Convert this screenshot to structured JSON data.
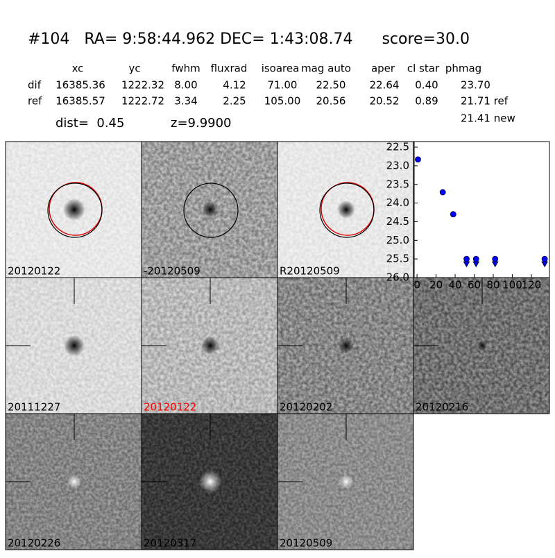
{
  "header": {
    "title": "#104   RA= 9:58:44.962 DEC= 1:43:08.74      score=30.0"
  },
  "table": {
    "columns": [
      "xc",
      "yc",
      "fwhm",
      "fluxrad",
      "isoarea",
      "mag auto",
      "aper",
      "cl star",
      "phmag"
    ],
    "rows": [
      [
        "dif",
        "16385.36",
        "1222.32",
        "8.00",
        "4.12",
        "71.00",
        "22.50",
        "22.64",
        "0.40",
        "23.70"
      ],
      [
        "ref",
        "16385.57",
        "1222.72",
        "3.34",
        "2.25",
        "105.00",
        "20.56",
        "20.52",
        "0.89",
        "21.71 ref"
      ]
    ],
    "extra": "21.41 new",
    "dist": "dist=  0.45",
    "z": "z=9.9900"
  },
  "panels": [
    "20120122",
    "-20120509",
    "R20120509",
    "20111227",
    "20120122",
    "20120202",
    "20120216",
    "20120226",
    "20120317",
    "20120509"
  ],
  "chart_data": {
    "type": "scatter",
    "color": "#0000ff",
    "x": [
      1,
      27,
      38,
      52,
      62,
      82,
      134
    ],
    "values": [
      22.83,
      23.71,
      24.3,
      25.5,
      25.5,
      25.5,
      25.5
    ],
    "errors": [
      0.02,
      0.03,
      0.08,
      null,
      null,
      null,
      null
    ],
    "upper_limit": [
      false,
      false,
      false,
      true,
      true,
      true,
      true
    ],
    "xlim": [
      -3,
      139
    ],
    "ylim": [
      26.0,
      22.35
    ],
    "xticks": [
      0,
      20,
      40,
      60,
      80,
      100,
      120
    ],
    "yticks": [
      22.5,
      {
        "value": 23,
        "label": "23.0"
      },
      23.5,
      {
        "value": 24,
        "label": "24.0"
      },
      24.5,
      {
        "value": 25,
        "label": "25.0"
      },
      25.5,
      {
        "value": 26,
        "label": "26.0"
      }
    ]
  }
}
